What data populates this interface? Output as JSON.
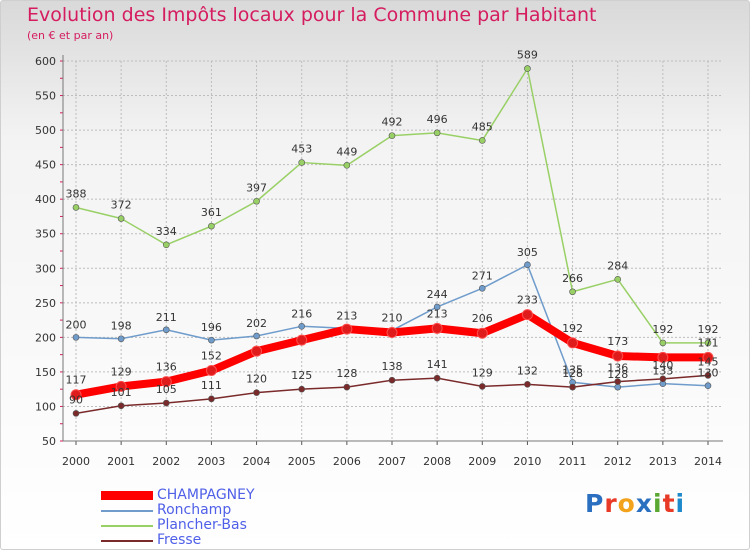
{
  "title": "Evolution des Impôts locaux pour la Commune par Habitant",
  "subtitle": "(en € et par an)",
  "logo": {
    "text": "Proxiti",
    "colors": [
      "#2b6fc0",
      "#e83a26",
      "#f2a31b",
      "#2b6fc0",
      "#5aa832",
      "#e83a26",
      "#1f8acb"
    ]
  },
  "chart_data": {
    "type": "line",
    "x": [
      "2000",
      "2001",
      "2002",
      "2003",
      "2004",
      "2005",
      "2006",
      "2007",
      "2008",
      "2009",
      "2010",
      "2011",
      "2012",
      "2013",
      "2014"
    ],
    "ylim": [
      50,
      600
    ],
    "yticks": [
      50,
      100,
      150,
      200,
      250,
      300,
      350,
      400,
      450,
      500,
      550,
      600
    ],
    "grid": true,
    "legend_position": "bottom-left",
    "series": [
      {
        "name": "CHAMPAGNEY",
        "color": "#ff0000",
        "values": [
          117,
          129,
          136,
          152,
          180,
          196,
          212,
          207,
          213,
          206,
          233,
          192,
          173,
          171,
          171
        ],
        "labels": [
          "117",
          "129",
          "136",
          "152",
          "",
          "",
          "",
          "",
          "213",
          "206",
          "233",
          "192",
          "173",
          "",
          "171"
        ]
      },
      {
        "name": "Ronchamp",
        "color": "#6f9ccb",
        "values": [
          200,
          198,
          211,
          196,
          202,
          216,
          213,
          210,
          244,
          271,
          305,
          135,
          128,
          133,
          130
        ],
        "labels": [
          "200",
          "198",
          "211",
          "196",
          "202",
          "216",
          "213",
          "210",
          "244",
          "271",
          "305",
          "135",
          "128",
          "133",
          "130"
        ]
      },
      {
        "name": "Plancher-Bas",
        "color": "#99d066",
        "values": [
          388,
          372,
          334,
          361,
          397,
          453,
          449,
          492,
          496,
          485,
          589,
          266,
          284,
          192,
          192
        ],
        "labels": [
          "388",
          "372",
          "334",
          "361",
          "397",
          "453",
          "449",
          "492",
          "496",
          "485",
          "589",
          "266",
          "284",
          "192",
          "192"
        ]
      },
      {
        "name": "Fresse",
        "color": "#7a2a2a",
        "values": [
          90,
          101,
          105,
          111,
          120,
          125,
          128,
          138,
          141,
          129,
          132,
          128,
          136,
          140,
          145
        ],
        "labels": [
          "90",
          "101",
          "105",
          "111",
          "120",
          "125",
          "128",
          "138",
          "141",
          "129",
          "132",
          "128",
          "136",
          "140",
          "145"
        ]
      }
    ]
  }
}
